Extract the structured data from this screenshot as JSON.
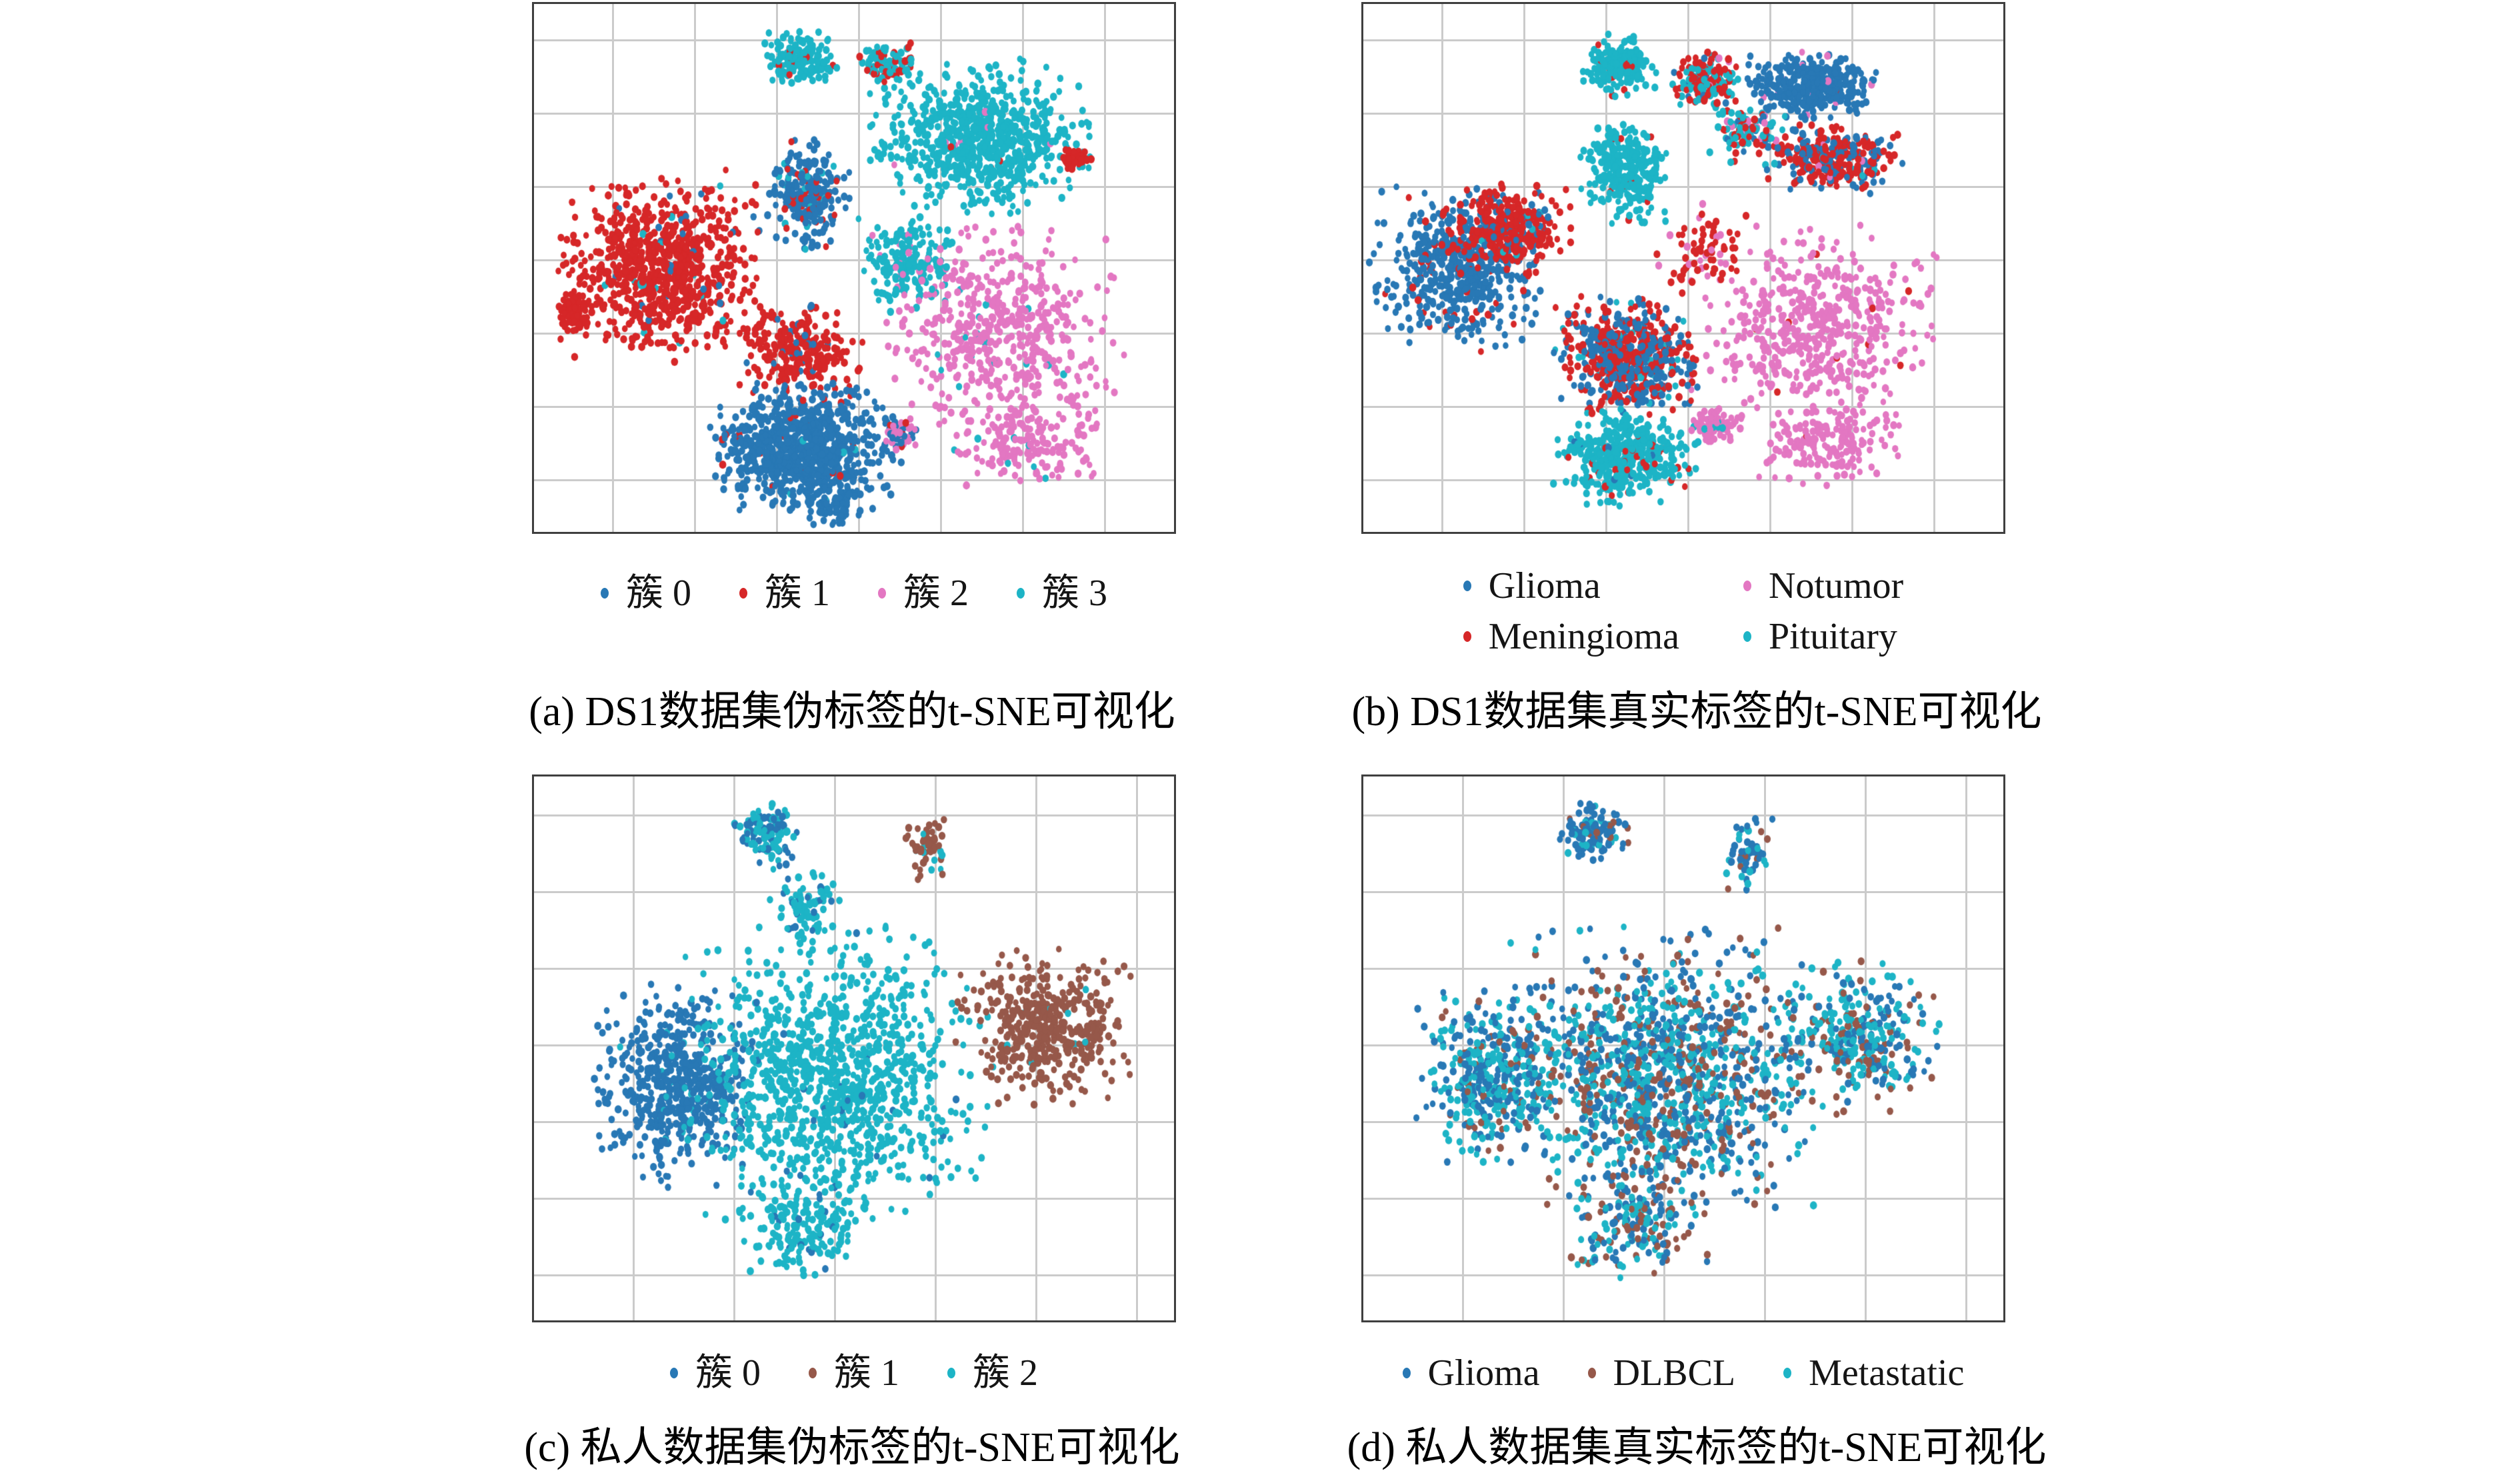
{
  "colors": {
    "blue": "#2878b5",
    "red": "#d62728",
    "pink": "#e377c2",
    "cyan": "#1db4c6",
    "brown": "#96584a",
    "grid": "#cbcbcb",
    "frame": "#3f3f3f"
  },
  "panels": [
    {
      "id": "a",
      "caption": "(a) DS1数据集伪标签的t-SNE可视化",
      "legend": {
        "columns": 1,
        "items": [
          {
            "label": "簇 0",
            "color": "blue"
          },
          {
            "label": "簇 1",
            "color": "red"
          },
          {
            "label": "簇 2",
            "color": "pink"
          },
          {
            "label": "簇 3",
            "color": "cyan"
          }
        ]
      }
    },
    {
      "id": "b",
      "caption": "(b) DS1数据集真实标签的t-SNE可视化",
      "legend": {
        "columns": 2,
        "items": [
          {
            "label": "Glioma",
            "color": "blue"
          },
          {
            "label": "Notumor",
            "color": "pink"
          },
          {
            "label": "Meningioma",
            "color": "red"
          },
          {
            "label": "Pituitary",
            "color": "cyan"
          }
        ]
      }
    },
    {
      "id": "c",
      "caption": "(c) 私人数据集伪标签的t-SNE可视化",
      "legend": {
        "columns": 1,
        "items": [
          {
            "label": "簇 0",
            "color": "blue"
          },
          {
            "label": "簇 1",
            "color": "brown"
          },
          {
            "label": "簇 2",
            "color": "cyan"
          }
        ]
      }
    },
    {
      "id": "d",
      "caption": "(d) 私人数据集真实标签的t-SNE可视化",
      "legend": {
        "columns": 1,
        "items": [
          {
            "label": "Glioma",
            "color": "blue"
          },
          {
            "label": "DLBCL",
            "color": "brown"
          },
          {
            "label": "Metastatic",
            "color": "cyan"
          }
        ]
      }
    }
  ],
  "chart_data": [
    {
      "type": "scatter",
      "title": "(a) DS1数据集伪标签的t-SNE可视化",
      "classes": [
        "簇 0",
        "簇 1",
        "簇 2",
        "簇 3"
      ],
      "xlabel": "",
      "ylabel": "",
      "grid": true,
      "axis_ticks_visible": false,
      "clusters": [
        {
          "c": [
            0.42,
            0.105
          ],
          "r": [
            0.05,
            0.045
          ],
          "n": 170,
          "colors": [
            [
              "cyan",
              0.93
            ],
            [
              "red",
              0.07
            ]
          ]
        },
        {
          "c": [
            0.555,
            0.115
          ],
          "r": [
            0.04,
            0.038
          ],
          "n": 90,
          "colors": [
            [
              "cyan",
              0.55
            ],
            [
              "red",
              0.45
            ]
          ]
        },
        {
          "c": [
            0.695,
            0.25
          ],
          "r": [
            0.145,
            0.125
          ],
          "n": 780,
          "colors": [
            [
              "cyan",
              0.985
            ],
            [
              "pink",
              0.01
            ],
            [
              "red",
              0.005
            ]
          ]
        },
        {
          "c": [
            0.845,
            0.295
          ],
          "r": [
            0.022,
            0.02
          ],
          "n": 40,
          "colors": [
            [
              "red",
              0.92
            ],
            [
              "cyan",
              0.08
            ]
          ]
        },
        {
          "c": [
            0.43,
            0.36
          ],
          "r": [
            0.055,
            0.09
          ],
          "n": 270,
          "colors": [
            [
              "blue",
              0.8
            ],
            [
              "red",
              0.12
            ],
            [
              "cyan",
              0.08
            ]
          ]
        },
        {
          "c": [
            0.2,
            0.5
          ],
          "r": [
            0.135,
            0.155
          ],
          "n": 850,
          "colors": [
            [
              "red",
              0.955
            ],
            [
              "blue",
              0.025
            ],
            [
              "cyan",
              0.02
            ]
          ]
        },
        {
          "c": [
            0.065,
            0.585
          ],
          "r": [
            0.025,
            0.04
          ],
          "n": 70,
          "colors": [
            [
              "red",
              1.0
            ]
          ]
        },
        {
          "c": [
            0.585,
            0.49
          ],
          "r": [
            0.07,
            0.075
          ],
          "n": 190,
          "colors": [
            [
              "cyan",
              0.96
            ],
            [
              "pink",
              0.04
            ]
          ]
        },
        {
          "c": [
            0.73,
            0.62
          ],
          "r": [
            0.16,
            0.17
          ],
          "n": 520,
          "colors": [
            [
              "pink",
              0.96
            ],
            [
              "cyan",
              0.04
            ]
          ]
        },
        {
          "c": [
            0.77,
            0.83
          ],
          "r": [
            0.1,
            0.075
          ],
          "n": 180,
          "colors": [
            [
              "pink",
              0.97
            ],
            [
              "cyan",
              0.03
            ]
          ]
        },
        {
          "c": [
            0.415,
            0.655
          ],
          "r": [
            0.085,
            0.08
          ],
          "n": 280,
          "colors": [
            [
              "red",
              0.9
            ],
            [
              "blue",
              0.1
            ]
          ]
        },
        {
          "c": [
            0.425,
            0.84
          ],
          "r": [
            0.125,
            0.105
          ],
          "n": 900,
          "colors": [
            [
              "blue",
              0.975
            ],
            [
              "red",
              0.015
            ],
            [
              "cyan",
              0.01
            ]
          ]
        },
        {
          "c": [
            0.46,
            0.955
          ],
          "r": [
            0.05,
            0.03
          ],
          "n": 60,
          "colors": [
            [
              "blue",
              1.0
            ]
          ]
        },
        {
          "c": [
            0.575,
            0.815
          ],
          "r": [
            0.028,
            0.025
          ],
          "n": 55,
          "colors": [
            [
              "pink",
              0.5
            ],
            [
              "blue",
              0.3
            ],
            [
              "red",
              0.2
            ]
          ]
        }
      ]
    },
    {
      "type": "scatter",
      "title": "(b) DS1数据集真实标签的t-SNE可视化",
      "classes": [
        "Glioma",
        "Meningioma",
        "Notumor",
        "Pituitary"
      ],
      "xlabel": "",
      "ylabel": "",
      "grid": true,
      "axis_ticks_visible": false,
      "clusters": [
        {
          "c": [
            0.4,
            0.115
          ],
          "r": [
            0.048,
            0.05
          ],
          "n": 200,
          "colors": [
            [
              "cyan",
              0.94
            ],
            [
              "red",
              0.06
            ]
          ]
        },
        {
          "c": [
            0.535,
            0.145
          ],
          "r": [
            0.045,
            0.05
          ],
          "n": 170,
          "colors": [
            [
              "cyan",
              0.45
            ],
            [
              "red",
              0.45
            ],
            [
              "blue",
              0.06
            ],
            [
              "pink",
              0.04
            ]
          ]
        },
        {
          "c": [
            0.7,
            0.155
          ],
          "r": [
            0.085,
            0.055
          ],
          "n": 380,
          "colors": [
            [
              "blue",
              0.97
            ],
            [
              "pink",
              0.02
            ],
            [
              "red",
              0.01
            ]
          ]
        },
        {
          "c": [
            0.735,
            0.295
          ],
          "r": [
            0.095,
            0.055
          ],
          "n": 330,
          "colors": [
            [
              "red",
              0.58
            ],
            [
              "blue",
              0.38
            ],
            [
              "pink",
              0.02
            ],
            [
              "cyan",
              0.02
            ]
          ]
        },
        {
          "c": [
            0.6,
            0.24
          ],
          "r": [
            0.05,
            0.05
          ],
          "n": 110,
          "colors": [
            [
              "cyan",
              0.5
            ],
            [
              "red",
              0.3
            ],
            [
              "blue",
              0.1
            ],
            [
              "pink",
              0.1
            ]
          ]
        },
        {
          "c": [
            0.405,
            0.315
          ],
          "r": [
            0.06,
            0.085
          ],
          "n": 300,
          "colors": [
            [
              "cyan",
              0.95
            ],
            [
              "red",
              0.05
            ]
          ]
        },
        {
          "c": [
            0.145,
            0.5
          ],
          "r": [
            0.115,
            0.135
          ],
          "n": 520,
          "colors": [
            [
              "blue",
              0.92
            ],
            [
              "red",
              0.08
            ]
          ]
        },
        {
          "c": [
            0.225,
            0.43
          ],
          "r": [
            0.085,
            0.08
          ],
          "n": 330,
          "colors": [
            [
              "red",
              0.85
            ],
            [
              "blue",
              0.13
            ],
            [
              "cyan",
              0.02
            ]
          ]
        },
        {
          "c": [
            0.71,
            0.62
          ],
          "r": [
            0.165,
            0.175
          ],
          "n": 520,
          "colors": [
            [
              "pink",
              0.97
            ],
            [
              "red",
              0.03
            ]
          ]
        },
        {
          "c": [
            0.73,
            0.84
          ],
          "r": [
            0.095,
            0.07
          ],
          "n": 160,
          "colors": [
            [
              "pink",
              1.0
            ]
          ]
        },
        {
          "c": [
            0.41,
            0.67
          ],
          "r": [
            0.095,
            0.1
          ],
          "n": 620,
          "colors": [
            [
              "red",
              0.52
            ],
            [
              "blue",
              0.44
            ],
            [
              "cyan",
              0.04
            ]
          ]
        },
        {
          "c": [
            0.41,
            0.855
          ],
          "r": [
            0.095,
            0.08
          ],
          "n": 430,
          "colors": [
            [
              "cyan",
              0.9
            ],
            [
              "red",
              0.07
            ],
            [
              "blue",
              0.03
            ]
          ]
        },
        {
          "c": [
            0.55,
            0.8
          ],
          "r": [
            0.033,
            0.028
          ],
          "n": 80,
          "colors": [
            [
              "pink",
              0.92
            ],
            [
              "cyan",
              0.08
            ]
          ]
        },
        {
          "c": [
            0.53,
            0.47
          ],
          "r": [
            0.06,
            0.08
          ],
          "n": 70,
          "colors": [
            [
              "red",
              0.8
            ],
            [
              "pink",
              0.2
            ]
          ]
        }
      ]
    },
    {
      "type": "scatter",
      "title": "(c) 私人数据集伪标签的t-SNE可视化",
      "classes": [
        "簇 0",
        "簇 1",
        "簇 2"
      ],
      "xlabel": "",
      "ylabel": "",
      "grid": true,
      "axis_ticks_visible": false,
      "clusters": [
        {
          "c": [
            0.22,
            0.565
          ],
          "r": [
            0.105,
            0.16
          ],
          "n": 560,
          "colors": [
            [
              "blue",
              0.97
            ],
            [
              "cyan",
              0.03
            ]
          ]
        },
        {
          "c": [
            0.47,
            0.55
          ],
          "r": [
            0.2,
            0.235
          ],
          "n": 1150,
          "colors": [
            [
              "cyan",
              0.97
            ],
            [
              "blue",
              0.03
            ]
          ]
        },
        {
          "c": [
            0.42,
            0.83
          ],
          "r": [
            0.09,
            0.09
          ],
          "n": 180,
          "colors": [
            [
              "cyan",
              0.92
            ],
            [
              "blue",
              0.08
            ]
          ]
        },
        {
          "c": [
            0.795,
            0.46
          ],
          "r": [
            0.115,
            0.125
          ],
          "n": 430,
          "colors": [
            [
              "brown",
              0.97
            ],
            [
              "cyan",
              0.03
            ]
          ]
        },
        {
          "c": [
            0.36,
            0.105
          ],
          "r": [
            0.045,
            0.05
          ],
          "n": 120,
          "colors": [
            [
              "blue",
              0.45
            ],
            [
              "cyan",
              0.55
            ]
          ]
        },
        {
          "c": [
            0.615,
            0.13
          ],
          "r": [
            0.03,
            0.06
          ],
          "n": 55,
          "colors": [
            [
              "brown",
              0.8
            ],
            [
              "cyan",
              0.2
            ]
          ]
        },
        {
          "c": [
            0.42,
            0.24
          ],
          "r": [
            0.05,
            0.06
          ],
          "n": 80,
          "colors": [
            [
              "cyan",
              0.85
            ],
            [
              "blue",
              0.15
            ]
          ]
        }
      ]
    },
    {
      "type": "scatter",
      "title": "(d) 私人数据集真实标签的t-SNE可视化",
      "classes": [
        "Glioma",
        "DLBCL",
        "Metastatic"
      ],
      "xlabel": "",
      "ylabel": "",
      "grid": true,
      "axis_ticks_visible": false,
      "clusters": [
        {
          "c": [
            0.47,
            0.55
          ],
          "r": [
            0.21,
            0.23
          ],
          "n": 1250,
          "colors": [
            [
              "blue",
              0.37
            ],
            [
              "cyan",
              0.38
            ],
            [
              "brown",
              0.25
            ]
          ]
        },
        {
          "c": [
            0.2,
            0.55
          ],
          "r": [
            0.1,
            0.14
          ],
          "n": 420,
          "colors": [
            [
              "blue",
              0.4
            ],
            [
              "cyan",
              0.45
            ],
            [
              "brown",
              0.15
            ]
          ]
        },
        {
          "c": [
            0.78,
            0.48
          ],
          "r": [
            0.11,
            0.12
          ],
          "n": 330,
          "colors": [
            [
              "cyan",
              0.45
            ],
            [
              "blue",
              0.35
            ],
            [
              "brown",
              0.2
            ]
          ]
        },
        {
          "c": [
            0.43,
            0.83
          ],
          "r": [
            0.09,
            0.09
          ],
          "n": 170,
          "colors": [
            [
              "blue",
              0.4
            ],
            [
              "cyan",
              0.35
            ],
            [
              "brown",
              0.25
            ]
          ]
        },
        {
          "c": [
            0.36,
            0.105
          ],
          "r": [
            0.045,
            0.05
          ],
          "n": 120,
          "colors": [
            [
              "blue",
              0.75
            ],
            [
              "cyan",
              0.15
            ],
            [
              "brown",
              0.1
            ]
          ]
        },
        {
          "c": [
            0.6,
            0.14
          ],
          "r": [
            0.035,
            0.06
          ],
          "n": 60,
          "colors": [
            [
              "blue",
              0.45
            ],
            [
              "cyan",
              0.3
            ],
            [
              "brown",
              0.25
            ]
          ]
        }
      ]
    }
  ]
}
